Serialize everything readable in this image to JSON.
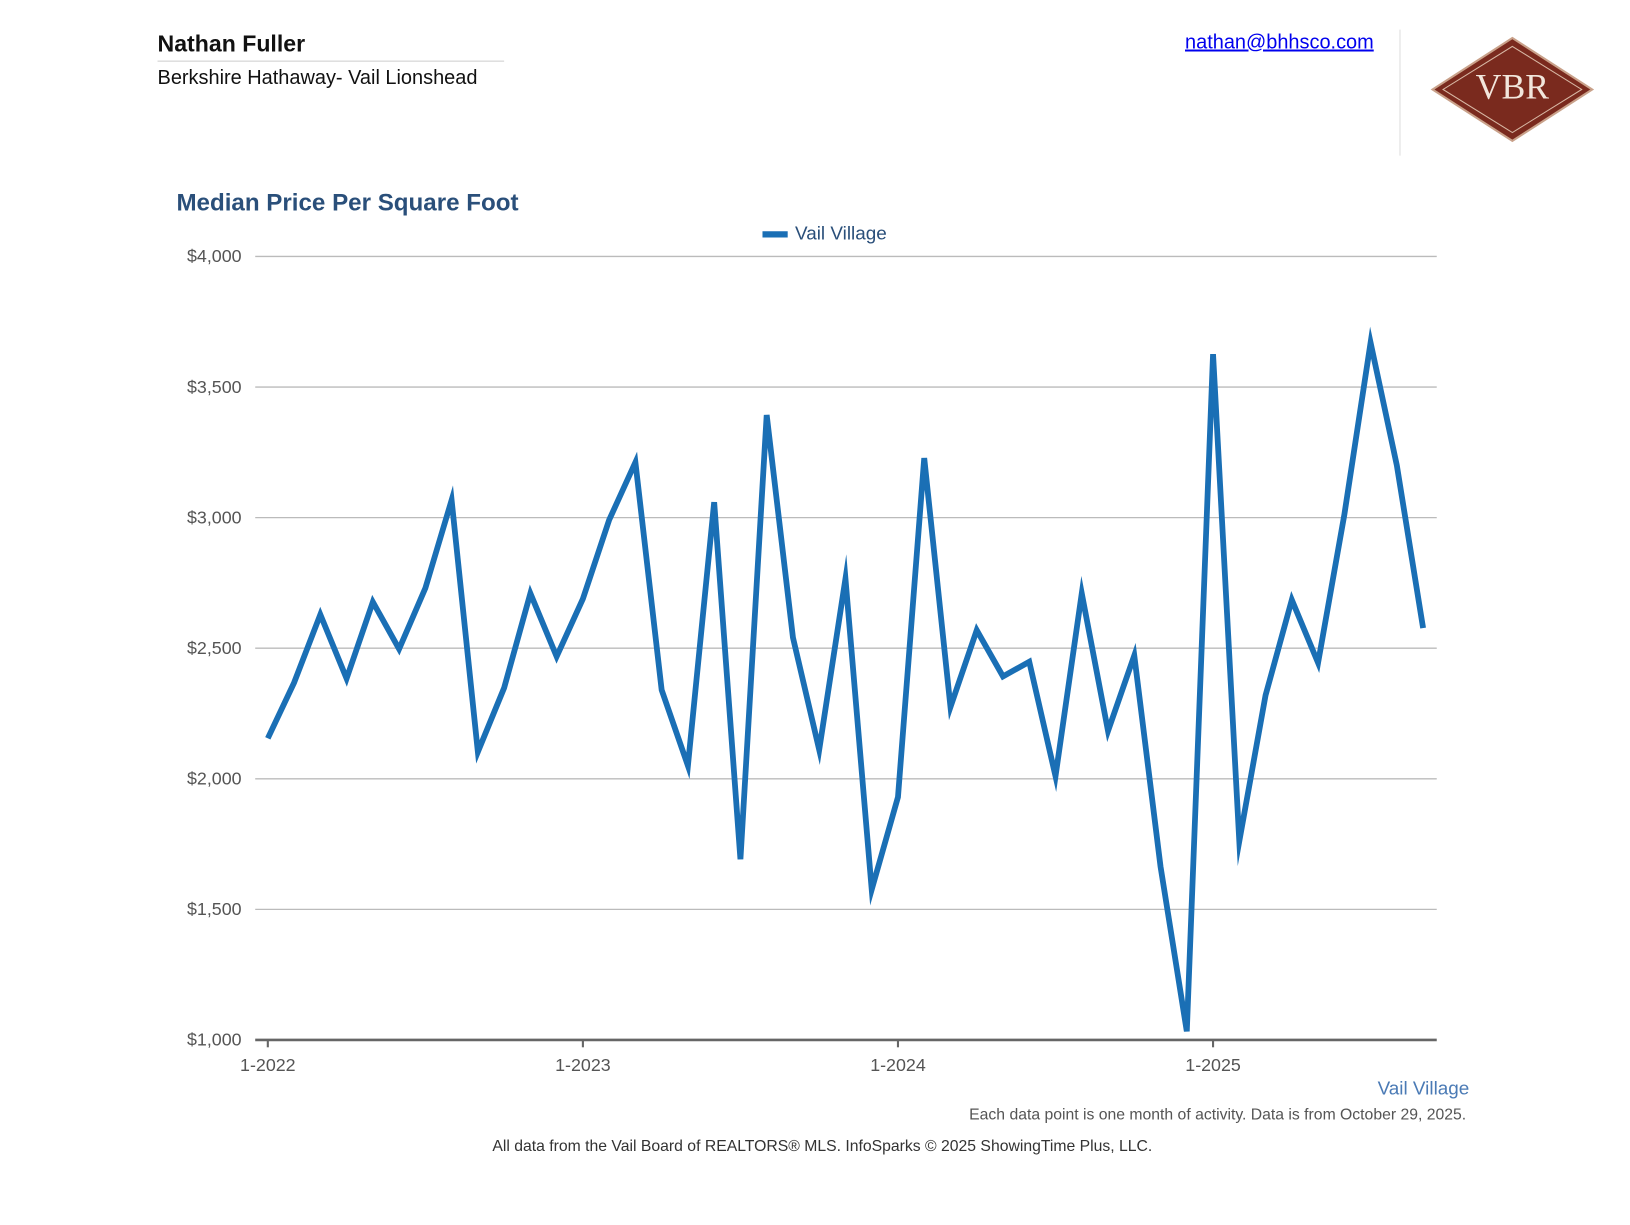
{
  "header": {
    "name": "Nathan Fuller",
    "company": "Berkshire Hathaway- Vail Lionshead",
    "email": "nathan@bhhsco.com",
    "logo": "VBR"
  },
  "chart_data": {
    "type": "line",
    "title": "Median Price Per Square Foot",
    "categories": [
      "1-2022",
      null,
      null,
      null,
      null,
      null,
      null,
      null,
      null,
      null,
      null,
      null,
      "1-2023",
      null,
      null,
      null,
      null,
      null,
      null,
      null,
      null,
      null,
      null,
      null,
      "1-2024",
      null,
      null,
      null,
      null,
      null,
      null,
      null,
      null,
      null,
      null,
      null,
      "1-2025",
      null,
      null,
      null,
      null,
      null,
      null,
      null,
      null
    ],
    "series": [
      {
        "name": "Vail Village",
        "color": "#1a6fb5",
        "values": [
          2155,
          2368,
          2629,
          2384,
          2677,
          2497,
          2730,
          3067,
          2103,
          2348,
          2710,
          2468,
          2689,
          2991,
          3212,
          2340,
          2050,
          3059,
          1692,
          3393,
          2541,
          2111,
          2766,
          1576,
          1930,
          3228,
          2275,
          2569,
          2392,
          2448,
          2010,
          2710,
          2183,
          2472,
          1664,
          1033,
          3626,
          1761,
          2320,
          2685,
          2444,
          3011,
          3670,
          3200,
          2577
        ]
      }
    ],
    "ylim": [
      1000,
      4000
    ],
    "yticks": [
      {
        "value": 1000,
        "label": "$1,000"
      },
      {
        "value": 1500,
        "label": "$1,500"
      },
      {
        "value": 2000,
        "label": "$2,000"
      },
      {
        "value": 2500,
        "label": "$2,500"
      },
      {
        "value": 3000,
        "label": "$3,000"
      },
      {
        "value": 3500,
        "label": "$3,500"
      },
      {
        "value": 4000,
        "label": "$4,000"
      }
    ],
    "grid": true,
    "legend": "top",
    "series_label": "Vail Village",
    "note": "Each data point is one month of activity. Data is from October 29, 2025.",
    "source": "All data from the Vail Board of REALTORS® MLS. InfoSparks © 2025 ShowingTime Plus, LLC."
  }
}
